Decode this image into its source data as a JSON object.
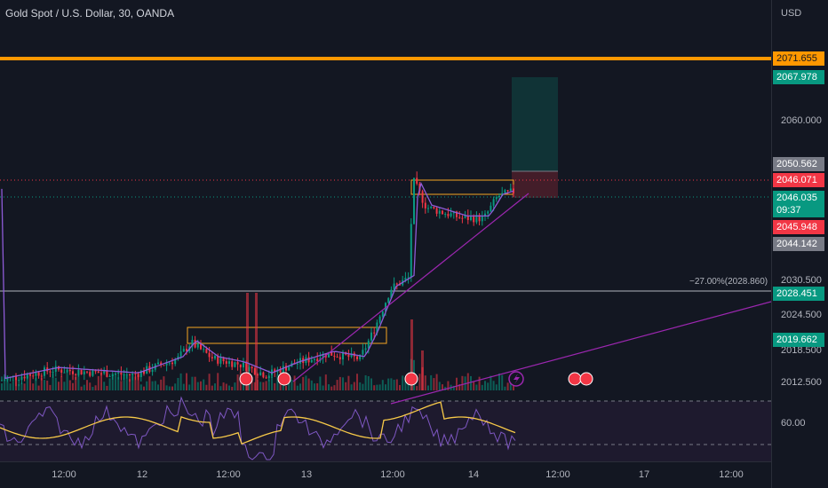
{
  "header": {
    "symbol_title": "Gold Spot / U.S. Dollar, 30, OANDA"
  },
  "price_scale": {
    "currency": "USD",
    "ticks": [
      "2060.000",
      "2030.500",
      "2024.500",
      "2018.500",
      "2012.500"
    ],
    "rsi_tick": "60.00"
  },
  "price_tags": [
    {
      "key": "alert_line",
      "text": "2071.655",
      "bg": "#ff9800",
      "fg": "#131722",
      "price": 2071.655
    },
    {
      "key": "take_profit",
      "text": "2067.978",
      "bg": "#089981",
      "fg": "#ffffff",
      "price": 2067.978
    },
    {
      "key": "stop_entry",
      "text": "2050.562",
      "bg": "#787b86",
      "fg": "#ffffff",
      "price": 2050.562
    },
    {
      "key": "ask",
      "text": "2046.071",
      "bg": "#f23645",
      "fg": "#ffffff",
      "price": 2046.071
    },
    {
      "key": "last_price",
      "text": "2046.035",
      "text2": "09:37",
      "bg": "#089981",
      "fg": "#ffffff",
      "price": 2044.9
    },
    {
      "key": "bid",
      "text": "2045.948",
      "bg": "#f23645",
      "fg": "#ffffff",
      "price": 2042.2
    },
    {
      "key": "low_marker",
      "text": "2044.142",
      "bg": "#787b86",
      "fg": "#ffffff",
      "price": 2040.9
    },
    {
      "key": "horizontal_line",
      "text": "2028.451",
      "bg": "#089981",
      "fg": "#ffffff",
      "price": 2028.451
    },
    {
      "key": "ray_level",
      "text": "2019.662",
      "bg": "#089981",
      "fg": "#ffffff",
      "price": 2019.662
    }
  ],
  "fib": {
    "label": "−27.00%(2028.860)",
    "price": 2028.86
  },
  "time_scale": {
    "labels": [
      {
        "text": "12:00",
        "day": 0.5
      },
      {
        "text": "12",
        "day": 1
      },
      {
        "text": "12:00",
        "day": 1.5
      },
      {
        "text": "13",
        "day": 2
      },
      {
        "text": "12:00",
        "day": 2.5
      },
      {
        "text": "14",
        "day": 3
      },
      {
        "text": "12:00",
        "day": 3.5
      },
      {
        "text": "17",
        "day": 4
      },
      {
        "text": "12:00",
        "day": 4.5
      }
    ]
  },
  "colors": {
    "background": "#131722",
    "up": "#089981",
    "down": "#f23645",
    "alert_line": "#ff9800",
    "trendline": "#9c27b0",
    "ma": "#8e5bd8",
    "rsi": "#7e57c2",
    "rsi_ma": "#f7c948",
    "box": "#f5a623"
  }
}
